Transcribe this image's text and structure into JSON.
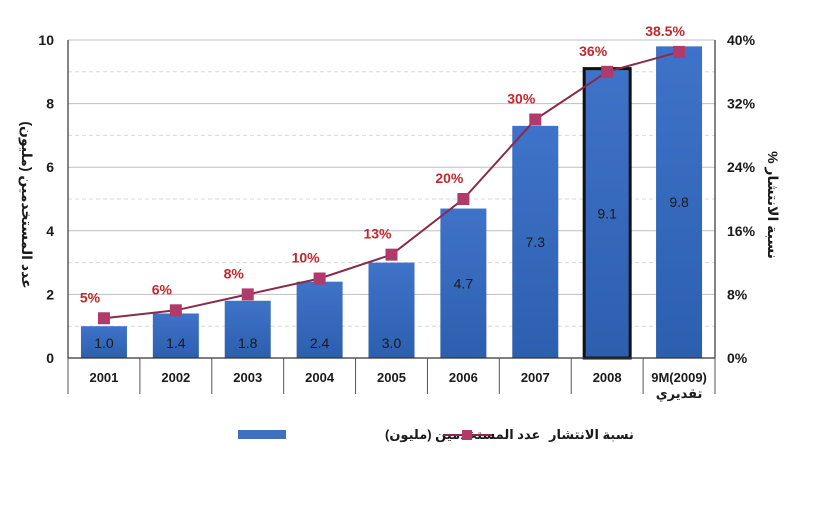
{
  "chart_data": {
    "type": "bar+line",
    "categories": [
      "2001",
      "2002",
      "2003",
      "2004",
      "2005",
      "2006",
      "2007",
      "2008",
      "9M(2009)"
    ],
    "category_notes": {
      "9M(2009)": "تقديري"
    },
    "series": [
      {
        "name": "عدد المستخدمين (مليون)",
        "type": "bar",
        "axis": "left",
        "values": [
          1.0,
          1.4,
          1.8,
          2.4,
          3.0,
          4.7,
          7.3,
          9.1,
          9.8
        ],
        "value_labels": [
          "1.0",
          "1.4",
          "1.8",
          "2.4",
          "3.0",
          "4.7",
          "7.3",
          "9.1",
          "9.8"
        ],
        "highlighted_index": 7
      },
      {
        "name": "نسبة الانتشار",
        "type": "line",
        "axis": "right",
        "values": [
          5,
          6,
          8,
          10,
          13,
          20,
          30,
          36,
          38.5
        ],
        "value_labels": [
          "5%",
          "6%",
          "8%",
          "10%",
          "13%",
          "20%",
          "30%",
          "36%",
          "38.5%"
        ]
      }
    ],
    "y_left": {
      "label": "عدد المستخدمين (مليون)",
      "range": [
        0,
        10
      ],
      "ticks": [
        "0",
        "2",
        "4",
        "6",
        "8",
        "10"
      ],
      "tick_values": [
        0,
        2,
        4,
        6,
        8,
        10
      ]
    },
    "y_right": {
      "label": "نسبة الانتشار %",
      "range": [
        0,
        40
      ],
      "ticks": [
        "0%",
        "8%",
        "16%",
        "24%",
        "32%",
        "40%"
      ],
      "tick_values": [
        0,
        8,
        16,
        24,
        32,
        40
      ]
    },
    "legend": [
      "عدد المستخدمين (مليون)",
      "نسبة الانتشار"
    ],
    "legend_position": "bottom",
    "grid": true
  },
  "colors": {
    "bar": "#3e6fc1",
    "bar_dark": "#2a5aa8",
    "bar_highlight_border": "#111111",
    "line": "#8a2a4a",
    "marker": "#b03a6a",
    "pct_label": "#c0282d",
    "grid": "#bfbfbf"
  }
}
